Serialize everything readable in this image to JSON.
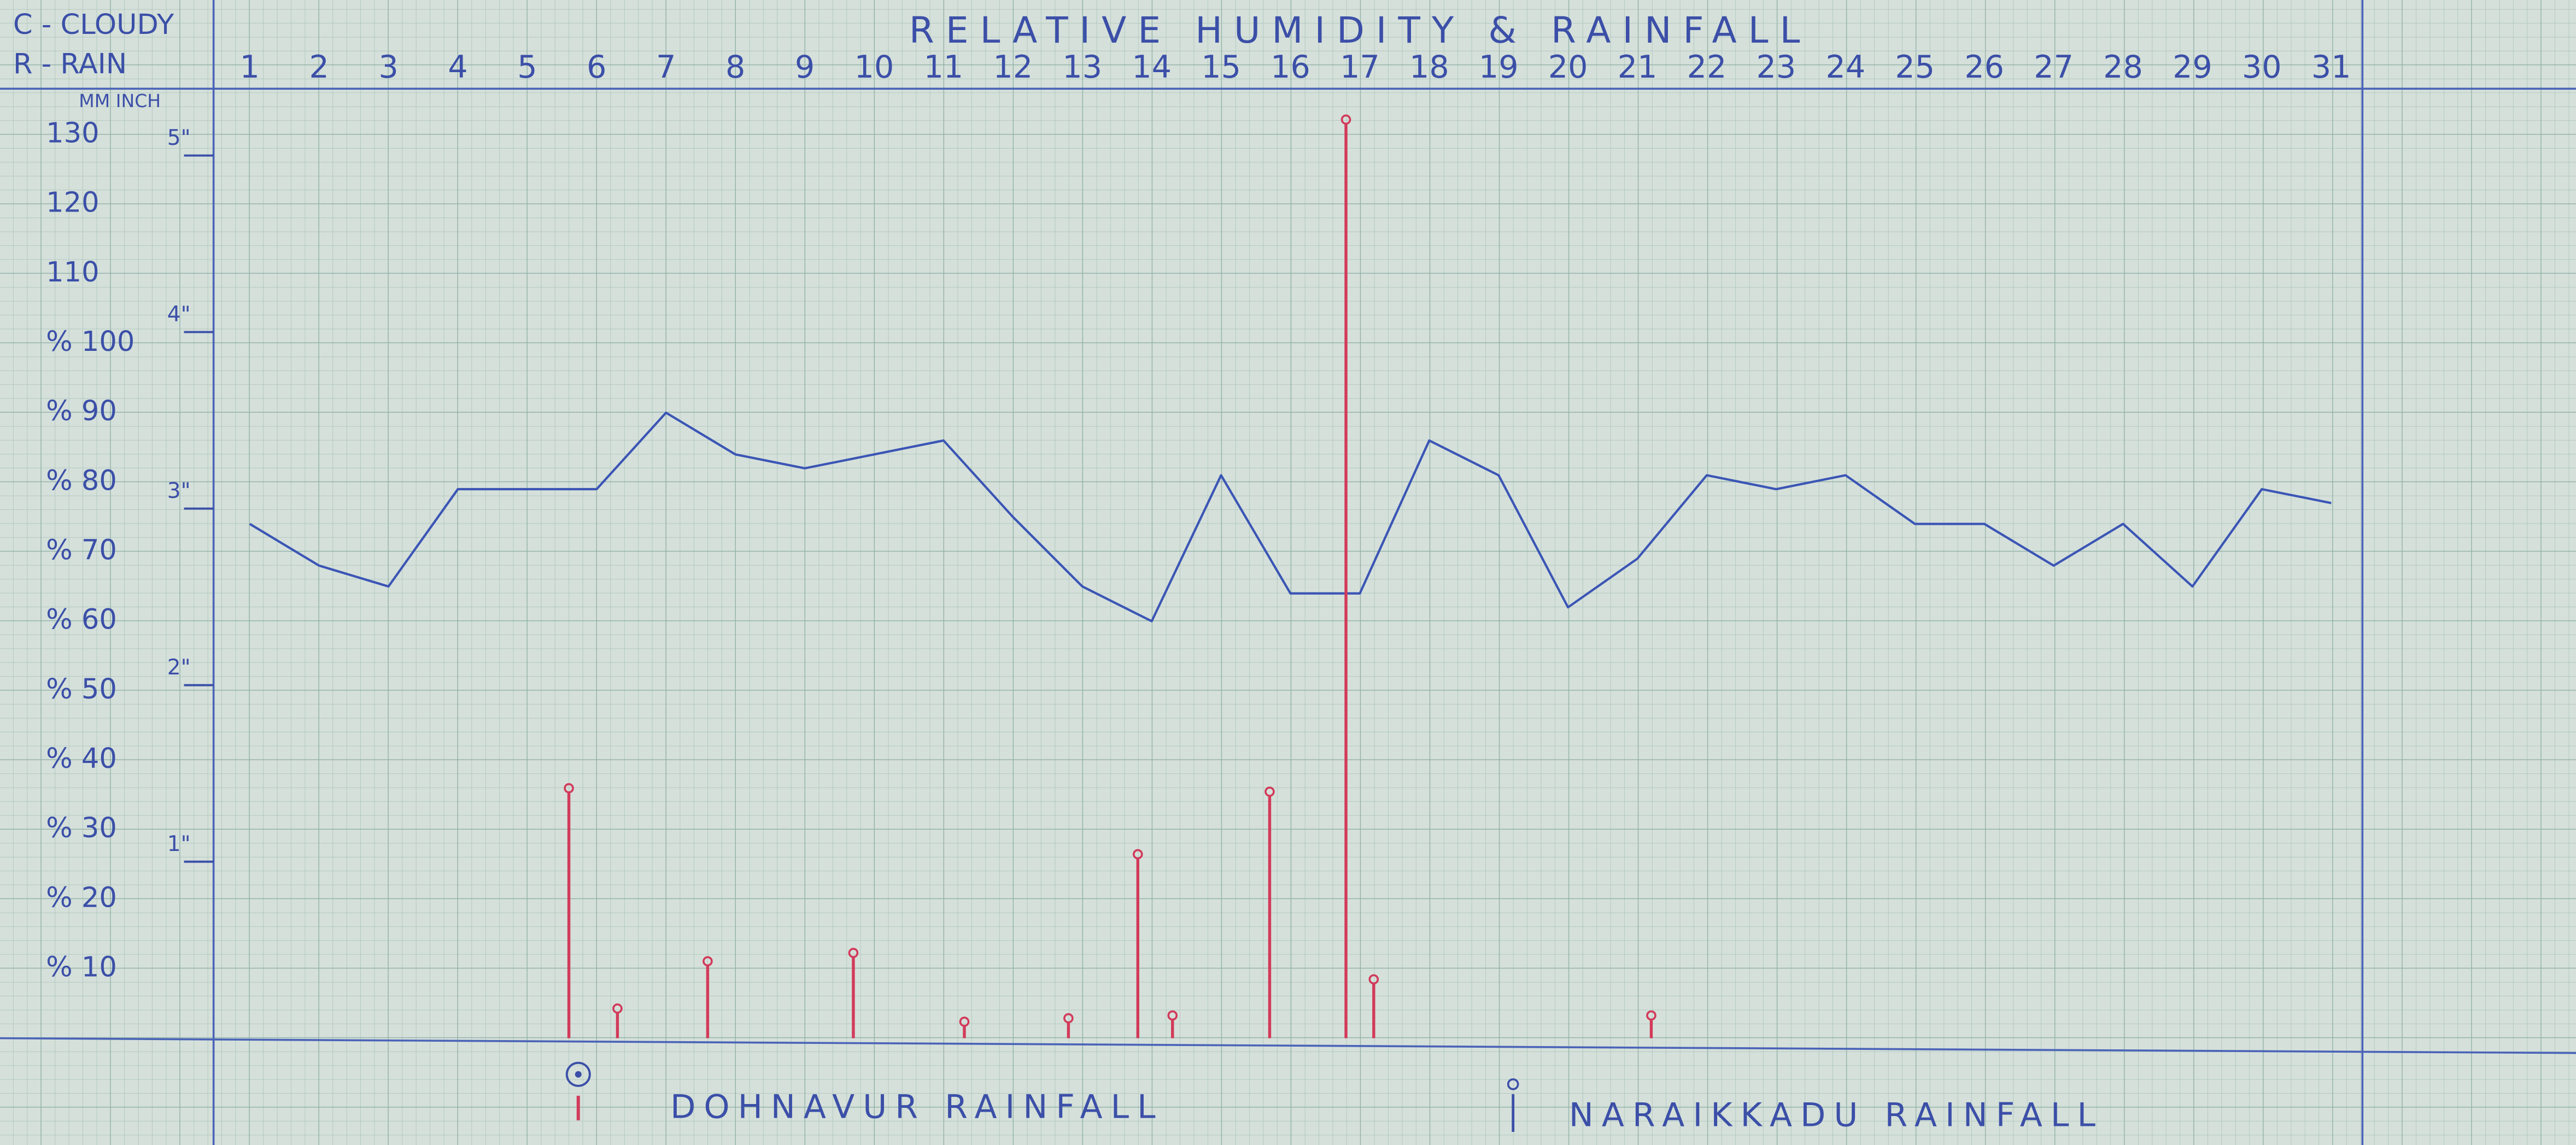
{
  "chart_data": {
    "type": "line",
    "title": "RELATIVE HUMIDITY & RAINFALL",
    "notes": [
      "C - CLOUDY",
      "R - RAIN"
    ],
    "y_axis_header": "MM INCH",
    "xlim": [
      1,
      31
    ],
    "xticks": [
      1,
      2,
      3,
      4,
      5,
      6,
      7,
      8,
      9,
      10,
      11,
      12,
      13,
      14,
      15,
      16,
      17,
      18,
      19,
      20,
      21,
      22,
      23,
      24,
      25,
      26,
      27,
      28,
      29,
      30,
      31
    ],
    "ylim": [
      0,
      130
    ],
    "yticks": [
      {
        "value": 10,
        "label": "% 10"
      },
      {
        "value": 20,
        "label": "% 20"
      },
      {
        "value": 30,
        "label": "% 30"
      },
      {
        "value": 40,
        "label": "% 40"
      },
      {
        "value": 50,
        "label": "% 50"
      },
      {
        "value": 60,
        "label": "% 60"
      },
      {
        "value": 70,
        "label": "% 70"
      },
      {
        "value": 80,
        "label": "% 80"
      },
      {
        "value": 90,
        "label": "% 90"
      },
      {
        "value": 100,
        "label": "% 100"
      },
      110,
      120,
      130
    ],
    "y2lim": [
      0,
      5.118
    ],
    "y2ticks": [
      {
        "value": 1,
        "label": "1\""
      },
      {
        "value": 2,
        "label": "2\""
      },
      {
        "value": 3,
        "label": "3\""
      },
      {
        "value": 4,
        "label": "4\""
      },
      {
        "value": 5,
        "label": "5\""
      }
    ],
    "series": [
      {
        "type": "line",
        "color": "#3b55b5",
        "x": [
          1,
          2,
          3,
          4,
          5,
          6,
          7,
          8,
          9,
          10,
          11,
          12,
          13,
          14,
          15,
          16,
          17,
          18,
          19,
          20,
          21,
          22,
          23,
          24,
          25,
          26,
          27,
          28,
          29,
          30,
          31
        ],
        "values": [
          74,
          68,
          65,
          79,
          79,
          79,
          90,
          84,
          82,
          84,
          86,
          75,
          65,
          60,
          81,
          64,
          64,
          86,
          81,
          62,
          69,
          81,
          79,
          81,
          74,
          74,
          68,
          74,
          65,
          79,
          77
        ]
      },
      {
        "type": "stem",
        "color": "#d23a5a",
        "x": [
          5.6,
          6.3,
          7.6,
          9.7,
          11.3,
          12.8,
          13.8,
          14.3,
          15.7,
          16.8,
          17.2,
          21.2
        ],
        "values": [
          35.5,
          3.8,
          10.6,
          11.8,
          1.9,
          2.4,
          26,
          2.8,
          35,
          131.7,
          8,
          2.8
        ]
      }
    ],
    "legend": [
      "DOHNAVUR RAINFALL",
      "NARAIKKADU RAINFALL"
    ]
  }
}
